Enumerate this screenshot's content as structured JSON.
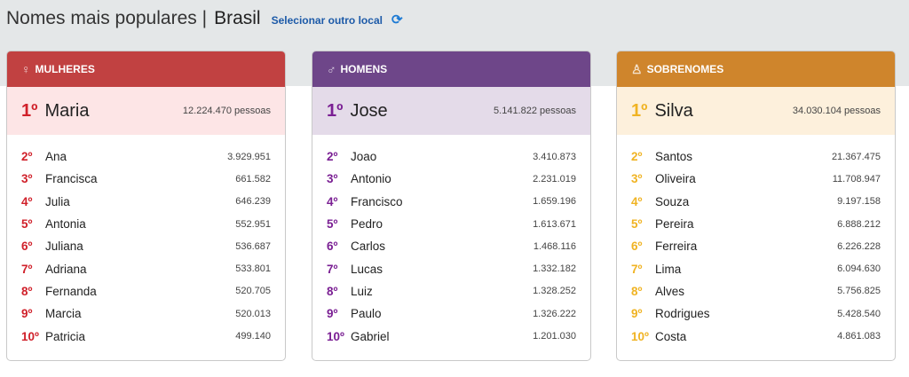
{
  "header": {
    "title": "Nomes mais populares |",
    "location": "Brasil",
    "select_label": "Selecionar outro local",
    "refresh_icon": "refresh-icon"
  },
  "cards": [
    {
      "key": "mulheres",
      "label": "MULHERES",
      "icon": "female-icon",
      "icon_glyph": "♀",
      "color": "#c14141",
      "light": "#fde5e6",
      "rank_color": "#d0202a",
      "first": {
        "rank": "1º",
        "name": "Maria",
        "count": "12.224.470 pessoas"
      },
      "items": [
        {
          "rank": "2º",
          "name": "Ana",
          "count": "3.929.951"
        },
        {
          "rank": "3º",
          "name": "Francisca",
          "count": "661.582"
        },
        {
          "rank": "4º",
          "name": "Julia",
          "count": "646.239"
        },
        {
          "rank": "5º",
          "name": "Antonia",
          "count": "552.951"
        },
        {
          "rank": "6º",
          "name": "Juliana",
          "count": "536.687"
        },
        {
          "rank": "7º",
          "name": "Adriana",
          "count": "533.801"
        },
        {
          "rank": "8º",
          "name": "Fernanda",
          "count": "520.705"
        },
        {
          "rank": "9º",
          "name": "Marcia",
          "count": "520.013"
        },
        {
          "rank": "10º",
          "name": "Patricia",
          "count": "499.140"
        }
      ]
    },
    {
      "key": "homens",
      "label": "HOMENS",
      "icon": "male-icon",
      "icon_glyph": "♂",
      "color": "#6e4689",
      "light": "#e4dbe9",
      "rank_color": "#7a1f93",
      "first": {
        "rank": "1º",
        "name": "Jose",
        "count": "5.141.822 pessoas"
      },
      "items": [
        {
          "rank": "2º",
          "name": "Joao",
          "count": "3.410.873"
        },
        {
          "rank": "3º",
          "name": "Antonio",
          "count": "2.231.019"
        },
        {
          "rank": "4º",
          "name": "Francisco",
          "count": "1.659.196"
        },
        {
          "rank": "5º",
          "name": "Pedro",
          "count": "1.613.671"
        },
        {
          "rank": "6º",
          "name": "Carlos",
          "count": "1.468.116"
        },
        {
          "rank": "7º",
          "name": "Lucas",
          "count": "1.332.182"
        },
        {
          "rank": "8º",
          "name": "Luiz",
          "count": "1.328.252"
        },
        {
          "rank": "9º",
          "name": "Paulo",
          "count": "1.326.222"
        },
        {
          "rank": "10º",
          "name": "Gabriel",
          "count": "1.201.030"
        }
      ]
    },
    {
      "key": "sobrenomes",
      "label": "SOBRENOMES",
      "icon": "family-icon",
      "icon_glyph": "♙",
      "color": "#cf852c",
      "light": "#fdf0dc",
      "rank_color": "#f0b323",
      "first": {
        "rank": "1º",
        "name": "Silva",
        "count": "34.030.104 pessoas"
      },
      "items": [
        {
          "rank": "2º",
          "name": "Santos",
          "count": "21.367.475"
        },
        {
          "rank": "3º",
          "name": "Oliveira",
          "count": "11.708.947"
        },
        {
          "rank": "4º",
          "name": "Souza",
          "count": "9.197.158"
        },
        {
          "rank": "5º",
          "name": "Pereira",
          "count": "6.888.212"
        },
        {
          "rank": "6º",
          "name": "Ferreira",
          "count": "6.226.228"
        },
        {
          "rank": "7º",
          "name": "Lima",
          "count": "6.094.630"
        },
        {
          "rank": "8º",
          "name": "Alves",
          "count": "5.756.825"
        },
        {
          "rank": "9º",
          "name": "Rodrigues",
          "count": "5.428.540"
        },
        {
          "rank": "10º",
          "name": "Costa",
          "count": "4.861.083"
        }
      ]
    }
  ]
}
